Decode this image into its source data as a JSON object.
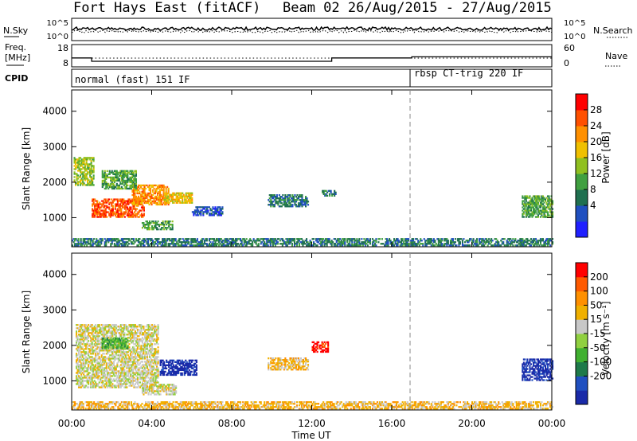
{
  "header": {
    "station": "Fort Hays East (fitACF)",
    "beam_date": "Beam 02 26/Aug/2015 - 27/Aug/2015"
  },
  "summary": {
    "nsky_label": "N.Sky",
    "nsearch_label": "N.Search",
    "freq_label_1": "Freq.",
    "freq_label_2": "[MHz]",
    "nave_label": "Nave",
    "cpid_label": "CPID",
    "noise_ticks": [
      "10^5",
      "10^0"
    ],
    "freq_ticks": [
      "18",
      "8"
    ],
    "nave_ticks": [
      "60",
      "0"
    ],
    "cpid_segments": [
      {
        "label": "normal (fast) 151 IF",
        "start_hour": 0,
        "end_hour": 17
      },
      {
        "label": "rbsp CT-trig 220 IF",
        "start_hour": 17,
        "end_hour": 24
      }
    ],
    "freq_steps": [
      {
        "start_hour": 0,
        "end_hour": 1,
        "mhz": 12
      },
      {
        "start_hour": 1,
        "end_hour": 13,
        "mhz": 10.5
      },
      {
        "start_hour": 13,
        "end_hour": 17,
        "mhz": 12
      },
      {
        "start_hour": 17,
        "end_hour": 24,
        "mhz": 12.5
      }
    ]
  },
  "axes": {
    "xlabel": "Time UT",
    "ylabel": "Slant Range [km]",
    "x_ticks": [
      "00:00",
      "04:00",
      "08:00",
      "12:00",
      "16:00",
      "20:00",
      "00:00"
    ],
    "y_ticks": [
      "1000",
      "2000",
      "3000",
      "4000"
    ],
    "x_range_hours": [
      0,
      24
    ],
    "y_range_km": [
      180,
      4600
    ]
  },
  "colorbars": {
    "power": {
      "label": "Power [dB]",
      "ticks": [
        "28",
        "24",
        "20",
        "16",
        "12",
        "8",
        "4"
      ],
      "colors": [
        "#2020ff",
        "#2050c0",
        "#207050",
        "#40a040",
        "#90c020",
        "#f0c000",
        "#ff9000",
        "#ff5000",
        "#ff0000"
      ]
    },
    "velocity": {
      "label": "Velocity [m s⁻¹]",
      "ticks": [
        "200",
        "100",
        "50",
        "15",
        "-15",
        "-50",
        "-100",
        "-200"
      ],
      "colors": [
        "#1a2aa8",
        "#2050c0",
        "#1e7a4a",
        "#40b030",
        "#90d040",
        "#c8c8c8",
        "#f0b000",
        "#ff9000",
        "#ff5a00",
        "#ff0000"
      ]
    }
  },
  "chart_data": {
    "type": "heatmap",
    "x_unit": "hours UT",
    "y_unit": "km",
    "panels": [
      {
        "name": "power",
        "regions": [
          {
            "t0": 1.0,
            "t1": 3.6,
            "r0": 1000,
            "r1": 1500,
            "level": 7
          },
          {
            "t0": 3.0,
            "t1": 4.8,
            "r0": 1350,
            "r1": 1900,
            "level": 6
          },
          {
            "t0": 0.1,
            "t1": 1.1,
            "r0": 1900,
            "r1": 2700,
            "level": 4
          },
          {
            "t0": 1.5,
            "t1": 3.2,
            "r0": 1800,
            "r1": 2300,
            "level": 3
          },
          {
            "t0": 4.6,
            "t1": 6.0,
            "r0": 1400,
            "r1": 1700,
            "level": 5
          },
          {
            "t0": 3.5,
            "t1": 5.0,
            "r0": 650,
            "r1": 900,
            "level": 3
          },
          {
            "t0": 6.0,
            "t1": 7.5,
            "r0": 1050,
            "r1": 1300,
            "level": 1
          },
          {
            "t0": 9.8,
            "t1": 11.8,
            "r0": 1300,
            "r1": 1650,
            "level": 2
          },
          {
            "t0": 0.0,
            "t1": 24.0,
            "r0": 200,
            "r1": 420,
            "level": 2
          },
          {
            "t0": 22.5,
            "t1": 24.0,
            "r0": 1000,
            "r1": 1600,
            "level": 3
          },
          {
            "t0": 12.5,
            "t1": 13.2,
            "r0": 1600,
            "r1": 1750,
            "level": 2
          }
        ]
      },
      {
        "name": "velocity",
        "regions": [
          {
            "t0": 0.2,
            "t1": 4.3,
            "r0": 800,
            "r1": 2600,
            "level": 5
          },
          {
            "t0": 4.4,
            "t1": 6.2,
            "r0": 1150,
            "r1": 1600,
            "level": 0
          },
          {
            "t0": 3.5,
            "t1": 5.2,
            "r0": 600,
            "r1": 900,
            "level": 5
          },
          {
            "t0": 9.8,
            "t1": 11.8,
            "r0": 1300,
            "r1": 1650,
            "level": 6
          },
          {
            "t0": 12.0,
            "t1": 12.8,
            "r0": 1800,
            "r1": 2100,
            "level": 9
          },
          {
            "t0": 0.0,
            "t1": 24.0,
            "r0": 200,
            "r1": 420,
            "level": 6
          },
          {
            "t0": 22.5,
            "t1": 24.0,
            "r0": 1000,
            "r1": 1600,
            "level": 0
          },
          {
            "t0": 1.5,
            "t1": 2.8,
            "r0": 1900,
            "r1": 2200,
            "level": 3
          }
        ]
      }
    ]
  }
}
